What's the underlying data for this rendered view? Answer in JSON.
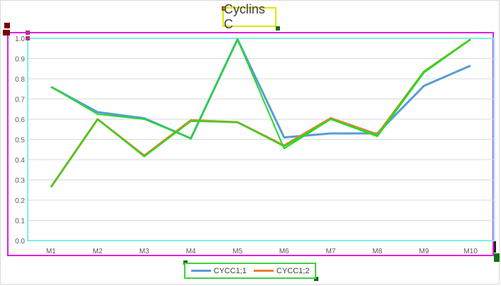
{
  "chart_data": {
    "type": "line",
    "title": "Cyclins C",
    "categories": [
      "M1",
      "M2",
      "M3",
      "M4",
      "M5",
      "M6",
      "M7",
      "M8",
      "M9",
      "M10"
    ],
    "ylim": [
      0,
      1.0
    ],
    "yticks": [
      "0.0",
      "0.1",
      "0.2",
      "0.3",
      "0.4",
      "0.5",
      "0.6",
      "0.7",
      "0.8",
      "0.9",
      "1.0"
    ],
    "grid": true,
    "legend_position": "bottom",
    "series": [
      {
        "name": "CYCC1;1",
        "color": "#5b9bd5",
        "values": [
          0.76,
          0.635,
          0.605,
          0.505,
          0.995,
          0.51,
          0.53,
          0.53,
          0.765,
          0.865
        ]
      },
      {
        "name": "CYCC1;2",
        "color": "#ed7d31",
        "values": [
          0.265,
          0.6,
          0.42,
          0.595,
          0.585,
          0.47,
          0.605,
          0.525,
          0.835,
          0.995
        ]
      }
    ],
    "overlay_lines": [
      {
        "color": "#22dd22",
        "values": [
          0.76,
          0.625,
          0.6,
          0.505,
          0.995,
          0.455,
          0.6,
          0.515,
          0.83,
          0.995
        ]
      },
      {
        "color": "#22dd22",
        "values": [
          0.265,
          0.6,
          0.415,
          0.59,
          0.585,
          0.465,
          0.6,
          0.52,
          0.835,
          0.995
        ]
      }
    ]
  }
}
